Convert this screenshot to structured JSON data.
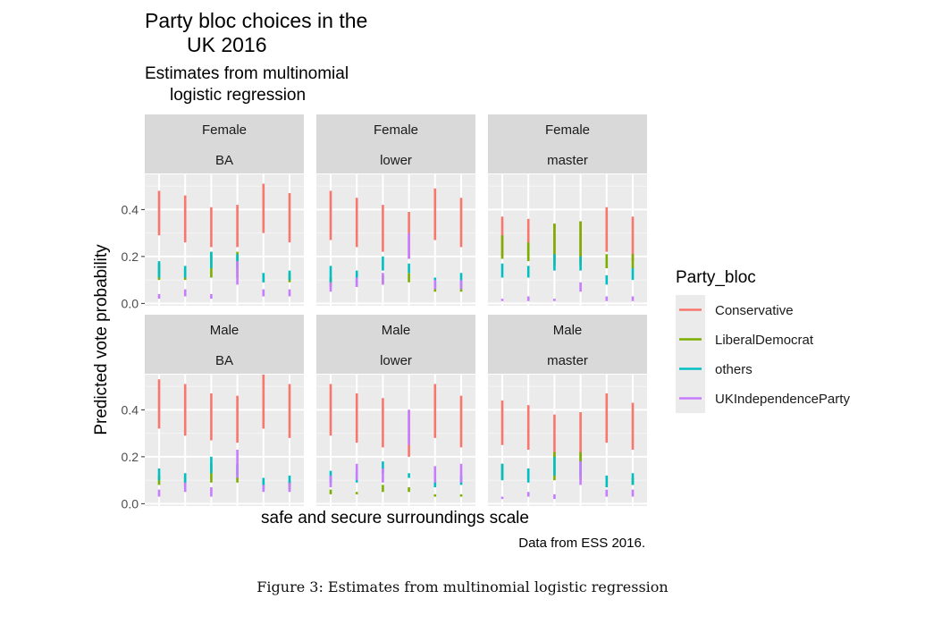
{
  "figure_caption": "Figure 3: Estimates from multinomial logistic regression",
  "chart_data": {
    "type": "errorbar",
    "title": [
      "Party bloc choices in the",
      "UK 2016"
    ],
    "subtitle": [
      "Estimates from multinomial",
      "logistic regression"
    ],
    "xlabel": "safe and secure surroundings scale",
    "ylabel": "Predicted vote probability",
    "caption": "Data from ESS 2016.",
    "legend_title": "Party_bloc",
    "legend_position": "right",
    "ylim": [
      -0.01,
      0.55
    ],
    "y_ticks": [
      0.0,
      0.2,
      0.4
    ],
    "y_tick_labels": [
      "0.0",
      "0.2",
      "0.4"
    ],
    "x_levels": [
      1,
      2,
      3,
      4,
      5,
      6
    ],
    "grid": true,
    "series_colors": {
      "Conservative": "#F8766D",
      "LiberalDemocrat": "#7CAE00",
      "others": "#00BFC4",
      "UKIndependenceParty": "#C77CFF"
    },
    "series": [
      "Conservative",
      "LiberalDemocrat",
      "others",
      "UKIndependenceParty"
    ],
    "panels": [
      {
        "row_label": "Female",
        "col_label": "BA",
        "ranges": {
          "Conservative": [
            [
              0.29,
              0.48
            ],
            [
              0.26,
              0.46
            ],
            [
              0.24,
              0.41
            ],
            [
              0.24,
              0.42
            ],
            [
              0.3,
              0.51
            ],
            [
              0.26,
              0.47
            ]
          ],
          "LiberalDemocrat": [
            [
              0.1,
              0.17
            ],
            [
              0.1,
              0.15
            ],
            [
              0.11,
              0.22
            ],
            [
              0.11,
              0.22
            ],
            [
              0.09,
              0.12
            ],
            [
              0.09,
              0.13
            ]
          ],
          "others": [
            [
              0.11,
              0.18
            ],
            [
              0.11,
              0.16
            ],
            [
              0.15,
              0.22
            ],
            [
              0.15,
              0.21
            ],
            [
              0.09,
              0.13
            ],
            [
              0.1,
              0.14
            ]
          ],
          "UKIndependenceParty": [
            [
              0.02,
              0.04
            ],
            [
              0.03,
              0.06
            ],
            [
              0.02,
              0.04
            ],
            [
              0.08,
              0.18
            ],
            [
              0.03,
              0.06
            ],
            [
              0.03,
              0.06
            ]
          ]
        }
      },
      {
        "row_label": "Female",
        "col_label": "lower",
        "ranges": {
          "Conservative": [
            [
              0.27,
              0.48
            ],
            [
              0.24,
              0.45
            ],
            [
              0.22,
              0.42
            ],
            [
              0.19,
              0.39
            ],
            [
              0.27,
              0.49
            ],
            [
              0.24,
              0.45
            ]
          ],
          "LiberalDemocrat": [
            [
              0.07,
              0.11
            ],
            [
              0.07,
              0.1
            ],
            [
              0.08,
              0.12
            ],
            [
              0.09,
              0.13
            ],
            [
              0.05,
              0.08
            ],
            [
              0.05,
              0.08
            ]
          ],
          "others": [
            [
              0.09,
              0.16
            ],
            [
              0.09,
              0.14
            ],
            [
              0.14,
              0.2
            ],
            [
              0.13,
              0.17
            ],
            [
              0.07,
              0.11
            ],
            [
              0.08,
              0.13
            ]
          ],
          "UKIndependenceParty": [
            [
              0.05,
              0.09
            ],
            [
              0.07,
              0.11
            ],
            [
              0.08,
              0.13
            ],
            [
              0.19,
              0.3
            ],
            [
              0.06,
              0.1
            ],
            [
              0.06,
              0.1
            ]
          ]
        }
      },
      {
        "row_label": "Female",
        "col_label": "master",
        "ranges": {
          "Conservative": [
            [
              0.2,
              0.37
            ],
            [
              0.19,
              0.36
            ],
            [
              0.16,
              0.34
            ],
            [
              0.16,
              0.35
            ],
            [
              0.22,
              0.41
            ],
            [
              0.18,
              0.37
            ]
          ],
          "LiberalDemocrat": [
            [
              0.19,
              0.29
            ],
            [
              0.18,
              0.26
            ],
            [
              0.17,
              0.34
            ],
            [
              0.17,
              0.35
            ],
            [
              0.15,
              0.21
            ],
            [
              0.15,
              0.21
            ]
          ],
          "others": [
            [
              0.11,
              0.17
            ],
            [
              0.11,
              0.16
            ],
            [
              0.14,
              0.21
            ],
            [
              0.14,
              0.2
            ],
            [
              0.08,
              0.12
            ],
            [
              0.1,
              0.15
            ]
          ],
          "UKIndependenceParty": [
            [
              0.01,
              0.02
            ],
            [
              0.01,
              0.03
            ],
            [
              0.01,
              0.02
            ],
            [
              0.05,
              0.09
            ],
            [
              0.01,
              0.03
            ],
            [
              0.01,
              0.03
            ]
          ]
        }
      },
      {
        "row_label": "Male",
        "col_label": "BA",
        "ranges": {
          "Conservative": [
            [
              0.32,
              0.53
            ],
            [
              0.29,
              0.51
            ],
            [
              0.27,
              0.47
            ],
            [
              0.26,
              0.46
            ],
            [
              0.32,
              0.55
            ],
            [
              0.28,
              0.51
            ]
          ],
          "LiberalDemocrat": [
            [
              0.08,
              0.12
            ],
            [
              0.07,
              0.12
            ],
            [
              0.09,
              0.17
            ],
            [
              0.09,
              0.16
            ],
            [
              0.06,
              0.09
            ],
            [
              0.06,
              0.1
            ]
          ],
          "others": [
            [
              0.1,
              0.15
            ],
            [
              0.09,
              0.13
            ],
            [
              0.13,
              0.2
            ],
            [
              0.12,
              0.17
            ],
            [
              0.07,
              0.11
            ],
            [
              0.08,
              0.12
            ]
          ],
          "UKIndependenceParty": [
            [
              0.03,
              0.06
            ],
            [
              0.05,
              0.09
            ],
            [
              0.03,
              0.07
            ],
            [
              0.11,
              0.23
            ],
            [
              0.05,
              0.08
            ],
            [
              0.05,
              0.09
            ]
          ]
        }
      },
      {
        "row_label": "Male",
        "col_label": "lower",
        "ranges": {
          "Conservative": [
            [
              0.29,
              0.51
            ],
            [
              0.26,
              0.47
            ],
            [
              0.24,
              0.45
            ],
            [
              0.2,
              0.4
            ],
            [
              0.28,
              0.51
            ],
            [
              0.24,
              0.46
            ]
          ],
          "LiberalDemocrat": [
            [
              0.04,
              0.06
            ],
            [
              0.04,
              0.05
            ],
            [
              0.05,
              0.08
            ],
            [
              0.05,
              0.07
            ],
            [
              0.03,
              0.04
            ],
            [
              0.03,
              0.04
            ]
          ],
          "others": [
            [
              0.09,
              0.14
            ],
            [
              0.09,
              0.13
            ],
            [
              0.13,
              0.18
            ],
            [
              0.11,
              0.13
            ],
            [
              0.07,
              0.1
            ],
            [
              0.08,
              0.12
            ]
          ],
          "UKIndependenceParty": [
            [
              0.07,
              0.12
            ],
            [
              0.1,
              0.17
            ],
            [
              0.09,
              0.15
            ],
            [
              0.25,
              0.4
            ],
            [
              0.09,
              0.16
            ],
            [
              0.09,
              0.17
            ]
          ]
        }
      },
      {
        "row_label": "Male",
        "col_label": "master",
        "ranges": {
          "Conservative": [
            [
              0.25,
              0.44
            ],
            [
              0.23,
              0.42
            ],
            [
              0.2,
              0.38
            ],
            [
              0.18,
              0.39
            ],
            [
              0.26,
              0.47
            ],
            [
              0.23,
              0.43
            ]
          ],
          "LiberalDemocrat": [
            [
              0.1,
              0.17
            ],
            [
              0.1,
              0.15
            ],
            [
              0.1,
              0.22
            ],
            [
              0.1,
              0.22
            ],
            [
              0.08,
              0.11
            ],
            [
              0.08,
              0.11
            ]
          ],
          "others": [
            [
              0.1,
              0.17
            ],
            [
              0.09,
              0.15
            ],
            [
              0.12,
              0.2
            ],
            [
              0.12,
              0.18
            ],
            [
              0.07,
              0.12
            ],
            [
              0.08,
              0.13
            ]
          ],
          "UKIndependenceParty": [
            [
              0.02,
              0.03
            ],
            [
              0.03,
              0.05
            ],
            [
              0.02,
              0.04
            ],
            [
              0.08,
              0.18
            ],
            [
              0.03,
              0.06
            ],
            [
              0.03,
              0.06
            ]
          ]
        }
      }
    ]
  }
}
